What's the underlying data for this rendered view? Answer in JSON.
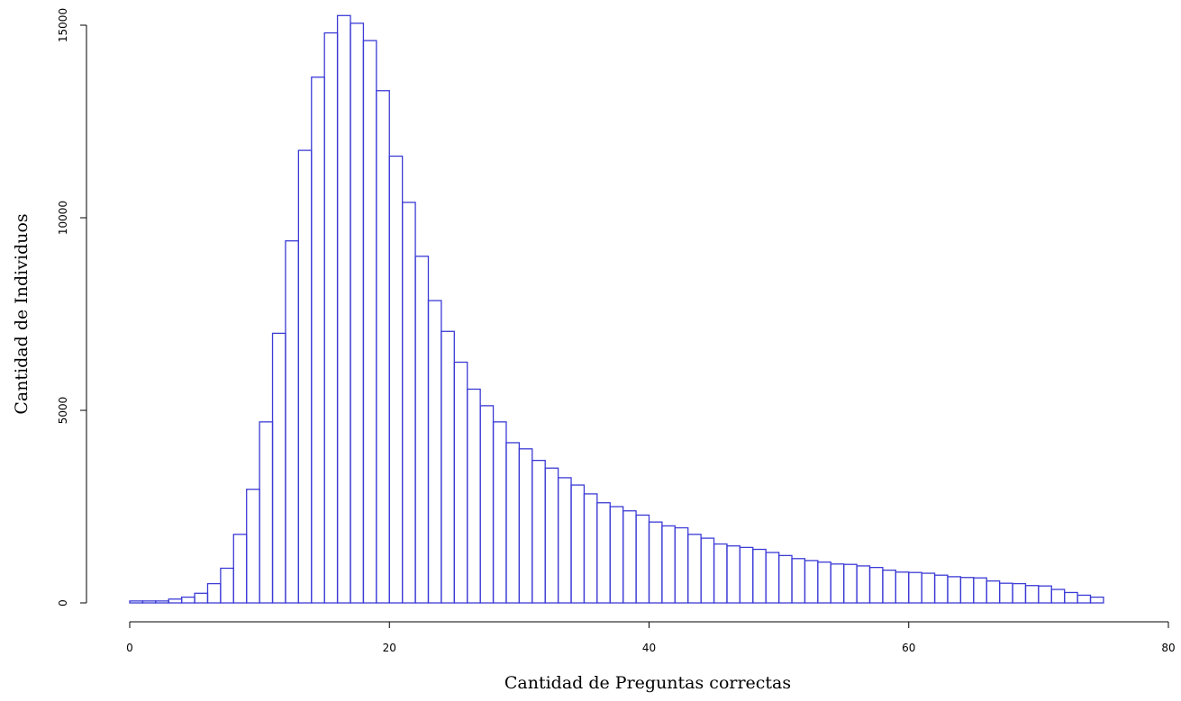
{
  "chart_data": {
    "type": "bar",
    "subtype": "histogram",
    "title": "",
    "xlabel": "Cantidad de Preguntas correctas",
    "ylabel": "Cantidad de Individuos",
    "xlim": [
      0,
      80
    ],
    "ylim": [
      0,
      15000
    ],
    "x_ticks": [
      0,
      20,
      40,
      60,
      80
    ],
    "x_tick_labels": [
      "0",
      "20",
      "40",
      "60",
      "80"
    ],
    "y_ticks": [
      0,
      5000,
      10000,
      15000
    ],
    "y_tick_labels": [
      "0",
      "5000",
      "10000",
      "15000"
    ],
    "grid": false,
    "legend": "none",
    "colors": {
      "bars": "#3b3bd6",
      "axis": "#000000",
      "background": "#ffffff"
    },
    "bin_width": 1,
    "bin_start": 0,
    "values": [
      50,
      50,
      50,
      100,
      150,
      250,
      500,
      900,
      1780,
      2950,
      4700,
      7000,
      9400,
      11750,
      13650,
      14800,
      15250,
      15050,
      14600,
      13300,
      11600,
      10400,
      9000,
      7850,
      7050,
      6250,
      5550,
      5120,
      4700,
      4160,
      4000,
      3700,
      3500,
      3250,
      3060,
      2830,
      2600,
      2500,
      2390,
      2280,
      2100,
      2000,
      1950,
      1780,
      1680,
      1530,
      1480,
      1440,
      1390,
      1310,
      1230,
      1150,
      1100,
      1060,
      1010,
      1000,
      960,
      920,
      850,
      800,
      790,
      770,
      720,
      680,
      660,
      650,
      570,
      510,
      500,
      450,
      440,
      350,
      270,
      200,
      150
    ]
  }
}
